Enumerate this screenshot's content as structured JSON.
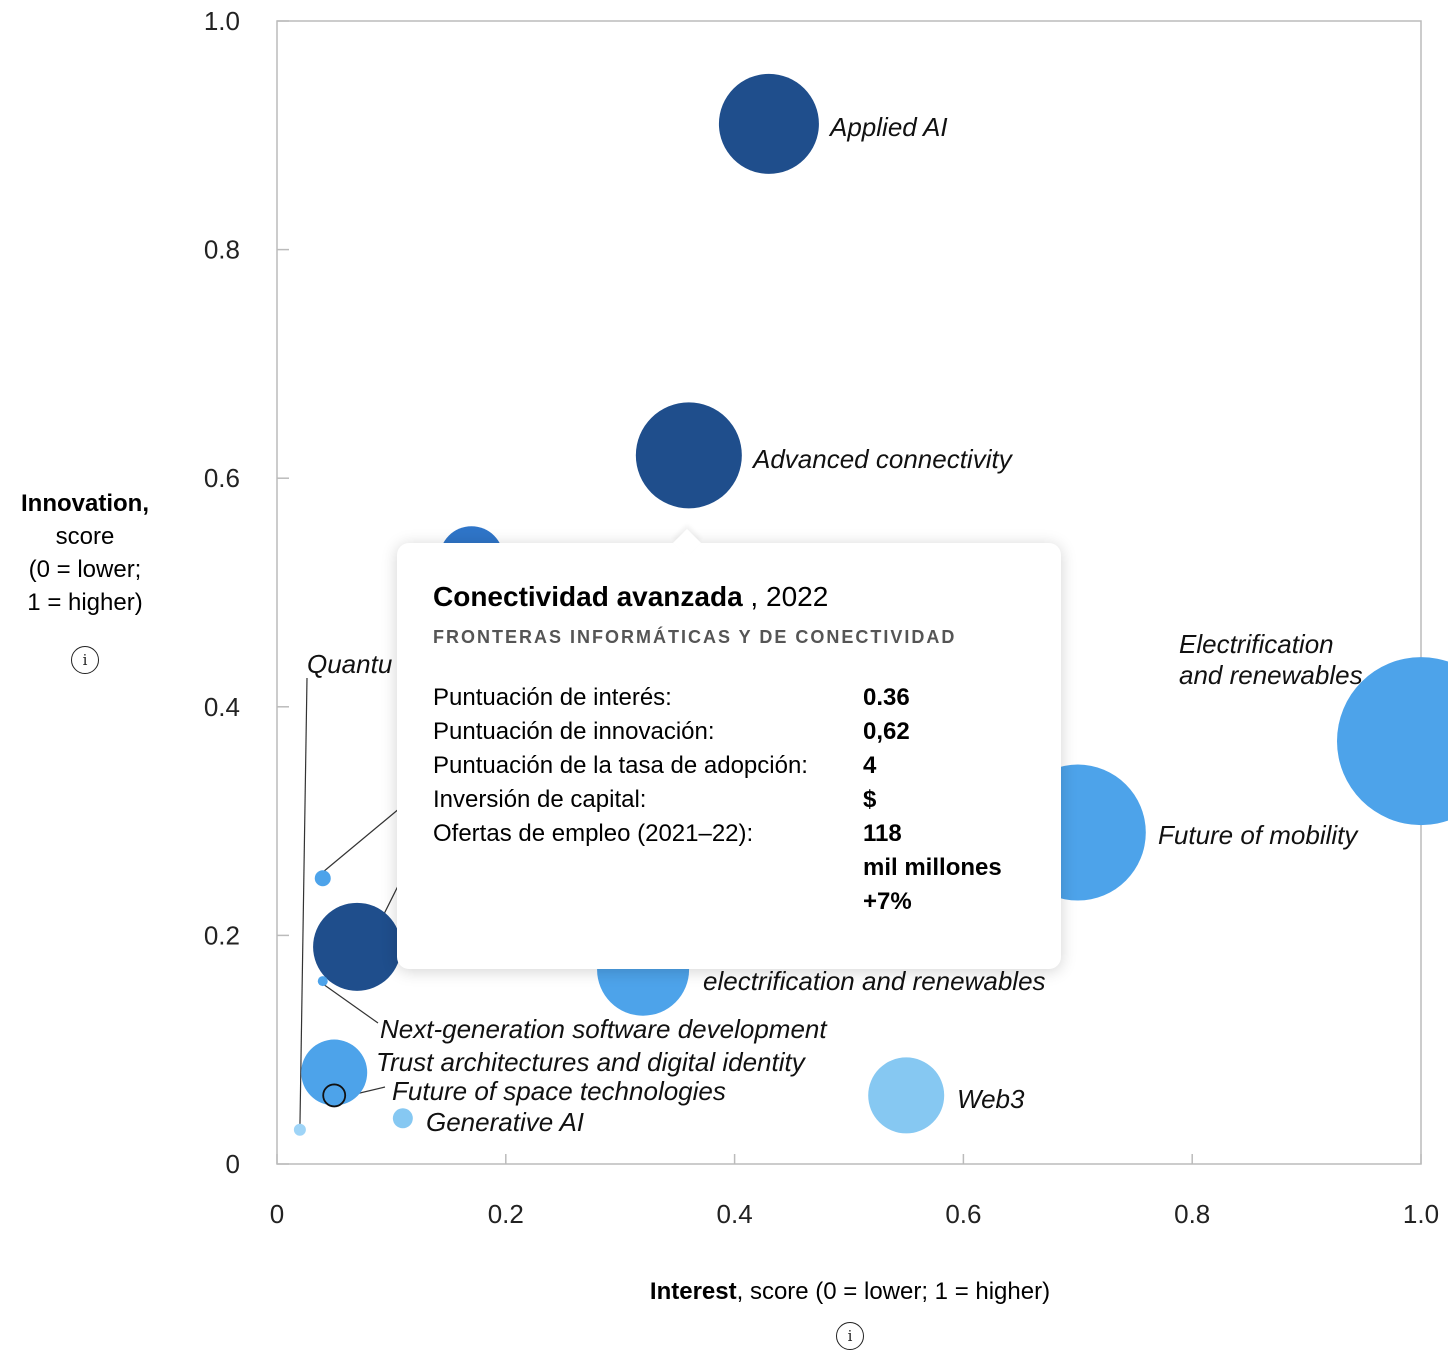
{
  "chart_data": {
    "type": "scatter",
    "xlabel_bold": "Interest",
    "xlabel_rest": ", score (0 = lower; 1 = higher)",
    "ylabel_bold": "Innovation,",
    "ylabel_lines": [
      "score",
      "(0 = lower;",
      "1 = higher)"
    ],
    "xlim": [
      0,
      1
    ],
    "ylim": [
      0,
      1
    ],
    "x_ticks": [
      "0",
      "0.2",
      "0.4",
      "0.6",
      "0.8",
      "1.0"
    ],
    "y_ticks": [
      "0",
      "0.2",
      "0.4",
      "0.6",
      "0.8",
      "1.0"
    ],
    "points": [
      {
        "label": "Applied AI",
        "x": 0.43,
        "y": 0.91,
        "size": 50,
        "color": "#1f4e8c"
      },
      {
        "label": "Advanced connectivity",
        "x": 0.36,
        "y": 0.62,
        "size": 53,
        "color": "#1f4e8c"
      },
      {
        "label": "",
        "x": 0.17,
        "y": 0.53,
        "size": 32,
        "color": "#2f75c8"
      },
      {
        "label": "Electrification and renewables",
        "x": 1.0,
        "y": 0.37,
        "size": 84,
        "color": "#4da3ea"
      },
      {
        "label": "Future of mobility",
        "x": 0.7,
        "y": 0.29,
        "size": 68,
        "color": "#4da3ea"
      },
      {
        "label": "electrification and renewables",
        "x": 0.32,
        "y": 0.17,
        "size": 46,
        "color": "#4da3ea"
      },
      {
        "label": "",
        "x": 0.07,
        "y": 0.19,
        "size": 44,
        "color": "#1f4e8c"
      },
      {
        "label": "",
        "x": 0.04,
        "y": 0.25,
        "size": 8,
        "color": "#4da3ea"
      },
      {
        "label": "Next-generation software development",
        "x": 0.04,
        "y": 0.16,
        "size": 5,
        "color": "#4da3ea"
      },
      {
        "label": "Trust architectures and digital identity",
        "x": 0.05,
        "y": 0.08,
        "size": 33,
        "color": "#4da3ea"
      },
      {
        "label": "Future of space technologies",
        "x": 0.05,
        "y": 0.06,
        "size": 11,
        "color": "#4da3ea"
      },
      {
        "label": "Generative AI",
        "x": 0.11,
        "y": 0.04,
        "size": 10,
        "color": "#86c8f2"
      },
      {
        "label": "Quantu",
        "x": 0.02,
        "y": 0.03,
        "size": 6,
        "color": "#9ed4f7"
      },
      {
        "label": "Web3",
        "x": 0.55,
        "y": 0.06,
        "size": 38,
        "color": "#86c8f2"
      }
    ]
  },
  "tooltip": {
    "title_bold": "Conectividad avanzada",
    "title_rest": " , 2022",
    "subtitle": "FRONTERAS INFORMÁTICAS Y DE CONECTIVIDAD",
    "rows": [
      {
        "k": "Puntuación de interés:",
        "v": "0.36"
      },
      {
        "k": "Puntuación de innovación:",
        "v": "0,62"
      },
      {
        "k": "Puntuación de la tasa de adopción:",
        "v": "4"
      },
      {
        "k": "Inversión de capital:",
        "v": "$"
      },
      {
        "k": "Ofertas de empleo (2021–22):",
        "v": "118"
      },
      {
        "k": "",
        "v": "mil millones"
      },
      {
        "k": "",
        "v": "+7%"
      }
    ]
  },
  "icons": {
    "info": "i"
  }
}
